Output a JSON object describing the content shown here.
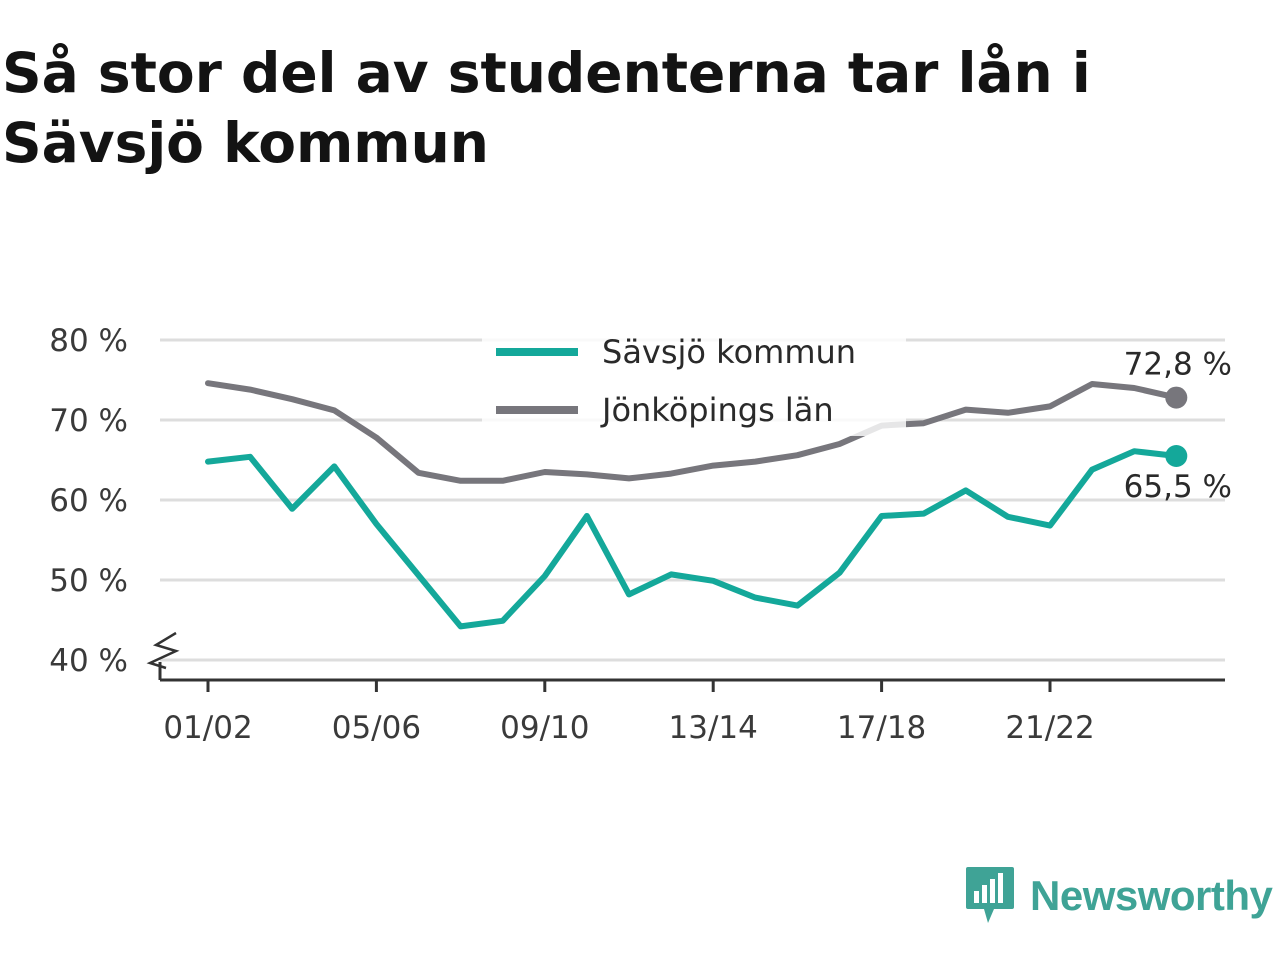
{
  "title": "Så stor del av studenterna tar lån i Sävsjö kommun",
  "brand": {
    "name": "Newsworthy",
    "color": "#3fa396",
    "icon": "newsworthy-logo-icon"
  },
  "chart_data": {
    "type": "line",
    "title": "Så stor del av studenterna tar lån i Sävsjö kommun",
    "xlabel": "",
    "ylabel": "",
    "categories": [
      "01/02",
      "02/03",
      "03/04",
      "04/05",
      "05/06",
      "06/07",
      "07/08",
      "08/09",
      "09/10",
      "10/11",
      "11/12",
      "12/13",
      "13/14",
      "14/15",
      "15/16",
      "16/17",
      "17/18",
      "18/19",
      "19/20",
      "20/21",
      "21/22",
      "22/23",
      "23/24",
      "24/25"
    ],
    "x_tick_labels": [
      "01/02",
      "05/06",
      "09/10",
      "13/14",
      "17/18",
      "21/22"
    ],
    "y_tick_labels": [
      "40 %",
      "50 %",
      "60 %",
      "70 %",
      "80 %"
    ],
    "ylim": [
      40,
      80
    ],
    "y_axis_break": true,
    "grid": true,
    "legend_position": "top-center",
    "series": [
      {
        "name": "Sävsjö kommun",
        "color": "#14a89a",
        "values": [
          64.8,
          65.4,
          58.9,
          64.2,
          57.0,
          50.6,
          44.2,
          44.9,
          50.5,
          58.0,
          48.2,
          50.7,
          49.9,
          47.8,
          46.8,
          50.9,
          58.0,
          58.3,
          61.2,
          57.9,
          56.8,
          63.8,
          66.1,
          65.5
        ],
        "end_label": "65,5 %"
      },
      {
        "name": "Jönköpings län",
        "color": "#77767c",
        "values": [
          74.6,
          73.8,
          72.6,
          71.2,
          67.8,
          63.4,
          62.4,
          62.4,
          63.5,
          63.2,
          62.7,
          63.3,
          64.3,
          64.8,
          65.6,
          67.0,
          69.3,
          69.6,
          71.3,
          70.9,
          71.7,
          74.5,
          74.0,
          72.8
        ],
        "end_label": "72,8 %"
      }
    ]
  }
}
